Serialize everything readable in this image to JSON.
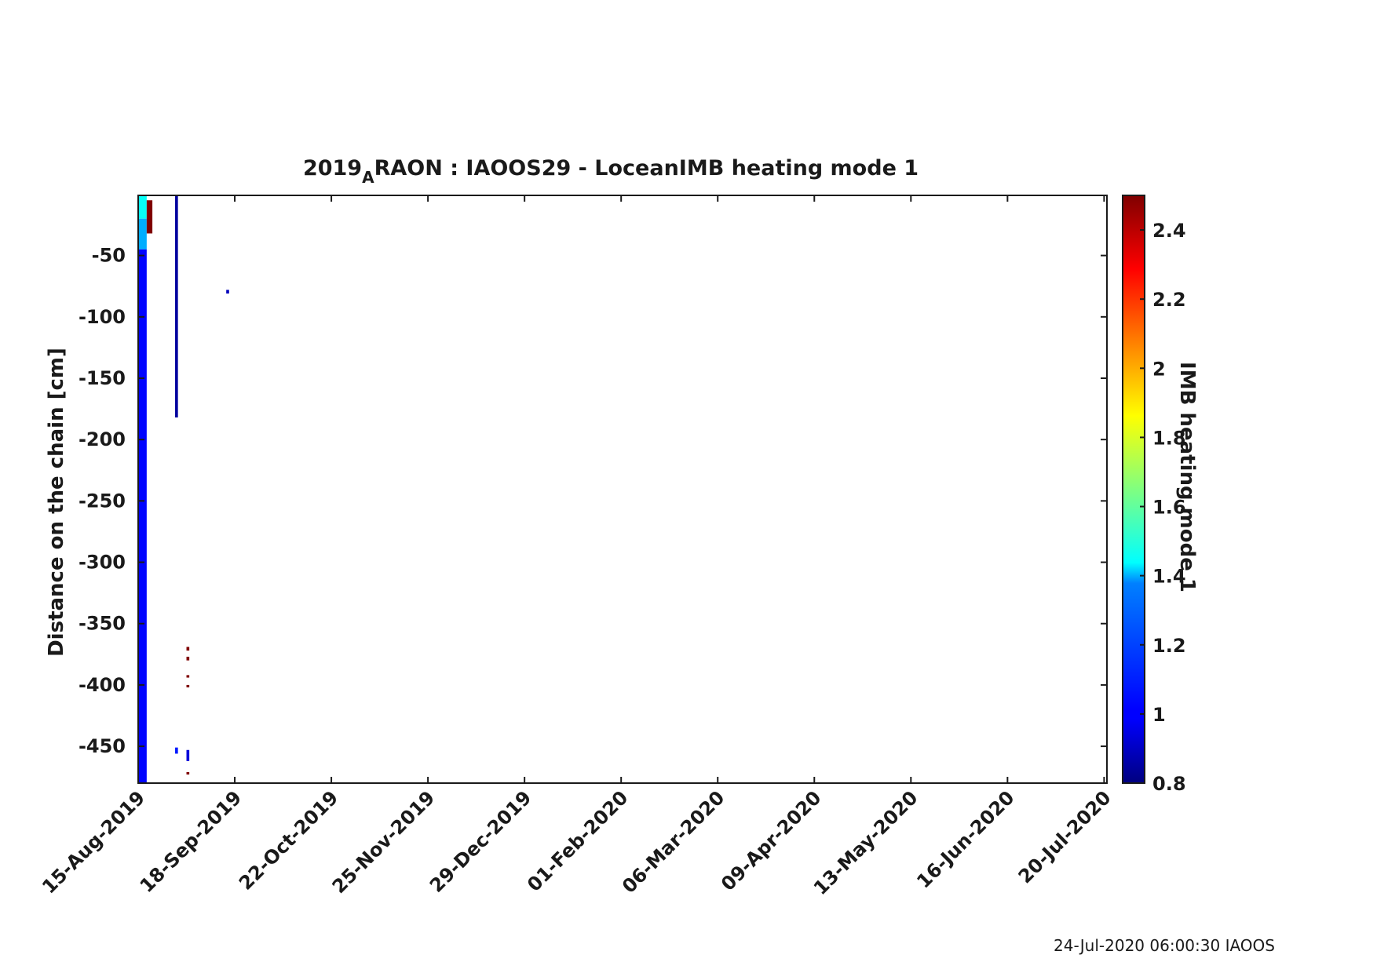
{
  "chart_data": {
    "type": "heatmap",
    "title": {
      "prefix": "2019",
      "subscript": "A",
      "suffix": "RAON : IAOOS29 - LoceanIMB heating mode 1"
    },
    "xlabel": "",
    "ylabel": "Distance on the chain [cm]",
    "x_ticks": [
      "15-Aug-2019",
      "18-Sep-2019",
      "22-Oct-2019",
      "25-Nov-2019",
      "29-Dec-2019",
      "01-Feb-2020",
      "06-Mar-2020",
      "09-Apr-2020",
      "13-May-2020",
      "16-Jun-2020",
      "20-Jul-2020"
    ],
    "xlim": [
      "15-Aug-2019",
      "21-Jul-2020"
    ],
    "y_ticks": [
      -50,
      -100,
      -150,
      -200,
      -250,
      -300,
      -350,
      -400,
      -450
    ],
    "ylim": [
      -480,
      -1
    ],
    "colorbar": {
      "label": "IMB heating mode 1",
      "ticks": [
        2.4,
        2.2,
        2,
        1.8,
        1.6,
        1.4,
        1.2,
        1,
        0.8
      ],
      "range": [
        0.8,
        2.5
      ],
      "colormap": "jet"
    },
    "grid": false,
    "cells": [
      {
        "start": "15-Aug-2019",
        "end": "18-Aug-2019",
        "top": -1,
        "bottom": -20,
        "value": 1.45
      },
      {
        "start": "15-Aug-2019",
        "end": "18-Aug-2019",
        "top": -20,
        "bottom": -45,
        "value": 1.3
      },
      {
        "start": "15-Aug-2019",
        "end": "18-Aug-2019",
        "top": -45,
        "bottom": -480,
        "value": 1.02
      },
      {
        "start": "18-Aug-2019",
        "end": "20-Aug-2019",
        "top": -5,
        "bottom": -32,
        "value": 2.5
      },
      {
        "start": "28-Aug-2019",
        "end": "29-Aug-2019",
        "top": -1,
        "bottom": -182,
        "value": 0.85
      },
      {
        "start": "15-Sep-2019",
        "end": "16-Sep-2019",
        "top": -78,
        "bottom": -81,
        "value": 0.9
      },
      {
        "start": "28-Aug-2019",
        "end": "29-Aug-2019",
        "top": -451,
        "bottom": -456,
        "value": 1.05
      },
      {
        "start": "01-Sep-2019",
        "end": "02-Sep-2019",
        "top": -369,
        "bottom": -372,
        "value": 2.5
      },
      {
        "start": "01-Sep-2019",
        "end": "02-Sep-2019",
        "top": -377,
        "bottom": -380,
        "value": 2.5
      },
      {
        "start": "01-Sep-2019",
        "end": "02-Sep-2019",
        "top": -392,
        "bottom": -394,
        "value": 2.5
      },
      {
        "start": "01-Sep-2019",
        "end": "02-Sep-2019",
        "top": -400,
        "bottom": -402,
        "value": 2.5
      },
      {
        "start": "01-Sep-2019",
        "end": "02-Sep-2019",
        "top": -453,
        "bottom": -462,
        "value": 0.95
      },
      {
        "start": "01-Sep-2019",
        "end": "02-Sep-2019",
        "top": -471,
        "bottom": -473,
        "value": 2.5
      }
    ]
  },
  "footer": {
    "text": "24-Jul-2020 06:00:30 IAOOS"
  }
}
